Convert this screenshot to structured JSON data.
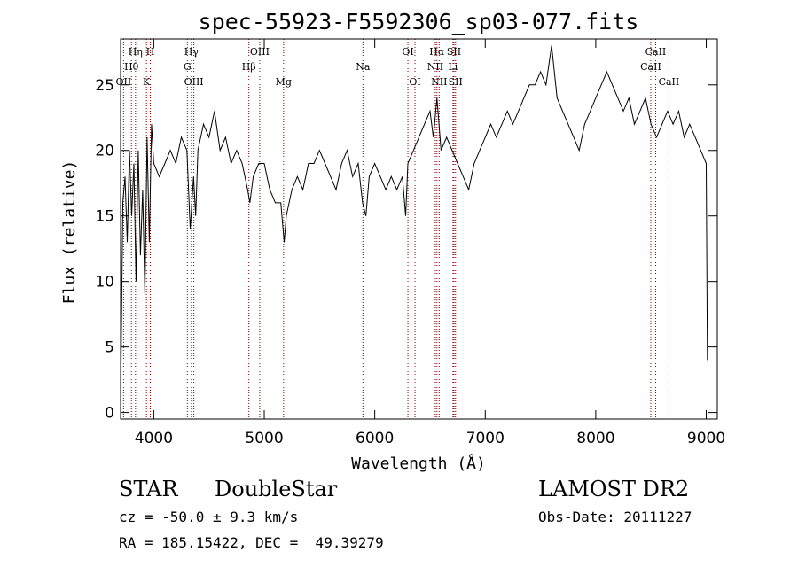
{
  "chart_data": {
    "type": "line",
    "title": "spec-55923-F5592306_sp03-077.fits",
    "xlabel": "Wavelength (Å)",
    "ylabel": "Flux (relative)",
    "xlim": [
      3700,
      9100
    ],
    "ylim": [
      -0.5,
      28.5
    ],
    "xticks": [
      4000,
      5000,
      6000,
      7000,
      8000,
      9000
    ],
    "yticks": [
      0,
      5,
      10,
      15,
      20,
      25
    ],
    "line_color": "#000000",
    "marker_color": "#8b0000",
    "series": [
      {
        "x": [
          3700,
          3720,
          3740,
          3760,
          3780,
          3800,
          3820,
          3840,
          3860,
          3880,
          3900,
          3920,
          3940,
          3960,
          3980,
          4000,
          4050,
          4100,
          4150,
          4200,
          4250,
          4300,
          4330,
          4360,
          4380,
          4400,
          4450,
          4500,
          4550,
          4600,
          4650,
          4700,
          4750,
          4800,
          4850,
          4870,
          4900,
          4950,
          5000,
          5050,
          5100,
          5150,
          5180,
          5200,
          5250,
          5300,
          5350,
          5400,
          5450,
          5500,
          5550,
          5600,
          5650,
          5700,
          5750,
          5800,
          5850,
          5890,
          5920,
          5950,
          6000,
          6050,
          6100,
          6150,
          6200,
          6250,
          6280,
          6300,
          6350,
          6400,
          6450,
          6500,
          6530,
          6563,
          6600,
          6650,
          6700,
          6750,
          6800,
          6850,
          6900,
          6950,
          7000,
          7050,
          7100,
          7150,
          7200,
          7250,
          7300,
          7350,
          7400,
          7450,
          7500,
          7550,
          7600,
          7650,
          7700,
          7750,
          7800,
          7850,
          7900,
          7950,
          8000,
          8050,
          8100,
          8150,
          8200,
          8250,
          8300,
          8350,
          8400,
          8450,
          8500,
          8550,
          8600,
          8650,
          8700,
          8750,
          8800,
          8850,
          8900,
          8950,
          9000,
          9010
        ],
        "y": [
          0.5,
          16,
          18,
          13,
          20,
          15,
          19,
          10,
          20,
          12,
          17,
          9,
          21,
          13,
          22,
          19,
          18,
          19,
          20,
          19,
          21,
          20,
          14,
          18,
          15,
          20,
          22,
          21,
          23,
          20,
          21,
          19,
          20,
          19,
          17,
          16,
          18,
          19,
          19,
          17,
          16,
          16,
          13,
          15,
          17,
          18,
          17,
          19,
          19,
          20,
          19,
          18,
          17,
          19,
          20,
          18,
          19,
          16,
          15,
          18,
          19,
          18,
          17,
          18,
          17,
          18,
          15,
          19,
          20,
          21,
          22,
          23,
          21,
          24,
          20,
          21,
          20,
          19,
          18,
          17,
          19,
          20,
          21,
          22,
          21,
          22,
          23,
          22,
          23,
          24,
          25,
          25,
          26,
          25,
          28,
          24,
          23,
          22,
          21,
          20,
          22,
          23,
          24,
          25,
          26,
          25,
          24,
          23,
          24,
          22,
          23,
          24,
          22,
          21,
          22,
          23,
          22,
          23,
          21,
          22,
          21,
          20,
          19,
          4
        ]
      }
    ],
    "lines": [
      {
        "label": "OII",
        "x": 3727,
        "row": 3
      },
      {
        "label": "Hθ",
        "x": 3798,
        "row": 2
      },
      {
        "label": "Hη",
        "x": 3835,
        "row": 1
      },
      {
        "label": "K",
        "x": 3934,
        "row": 3
      },
      {
        "label": "H",
        "x": 3969,
        "row": 1
      },
      {
        "label": "G",
        "x": 4304,
        "row": 2
      },
      {
        "label": "Hγ",
        "x": 4341,
        "row": 1
      },
      {
        "label": "OIII",
        "x": 4363,
        "row": 3
      },
      {
        "label": "Hβ",
        "x": 4861,
        "row": 2
      },
      {
        "label": "OIII",
        "x": 4959,
        "row": 1
      },
      {
        "label": "Mg",
        "x": 5175,
        "row": 3
      },
      {
        "label": "Na",
        "x": 5893,
        "row": 2
      },
      {
        "label": "OI",
        "x": 6300,
        "row": 1
      },
      {
        "label": "OI",
        "x": 6364,
        "row": 3
      },
      {
        "label": "NII",
        "x": 6548,
        "row": 2
      },
      {
        "label": "Hα",
        "x": 6563,
        "row": 1
      },
      {
        "label": "NII",
        "x": 6583,
        "row": 3
      },
      {
        "label": "SII",
        "x": 6717,
        "row": 1
      },
      {
        "label": "Li",
        "x": 6708,
        "row": 2
      },
      {
        "label": "SII",
        "x": 6731,
        "row": 3
      },
      {
        "label": "CaII",
        "x": 8498,
        "row": 2
      },
      {
        "label": "CaII",
        "x": 8542,
        "row": 1
      },
      {
        "label": "CaII",
        "x": 8662,
        "row": 3
      }
    ]
  },
  "info": {
    "class": "STAR",
    "subclass": "DoubleStar",
    "survey": "LAMOST DR2",
    "cz": "cz = -50.0 ± 9.3 km/s",
    "obs_date": "Obs-Date: 20111227",
    "radec": "RA = 185.15422, DEC =  49.39279"
  }
}
